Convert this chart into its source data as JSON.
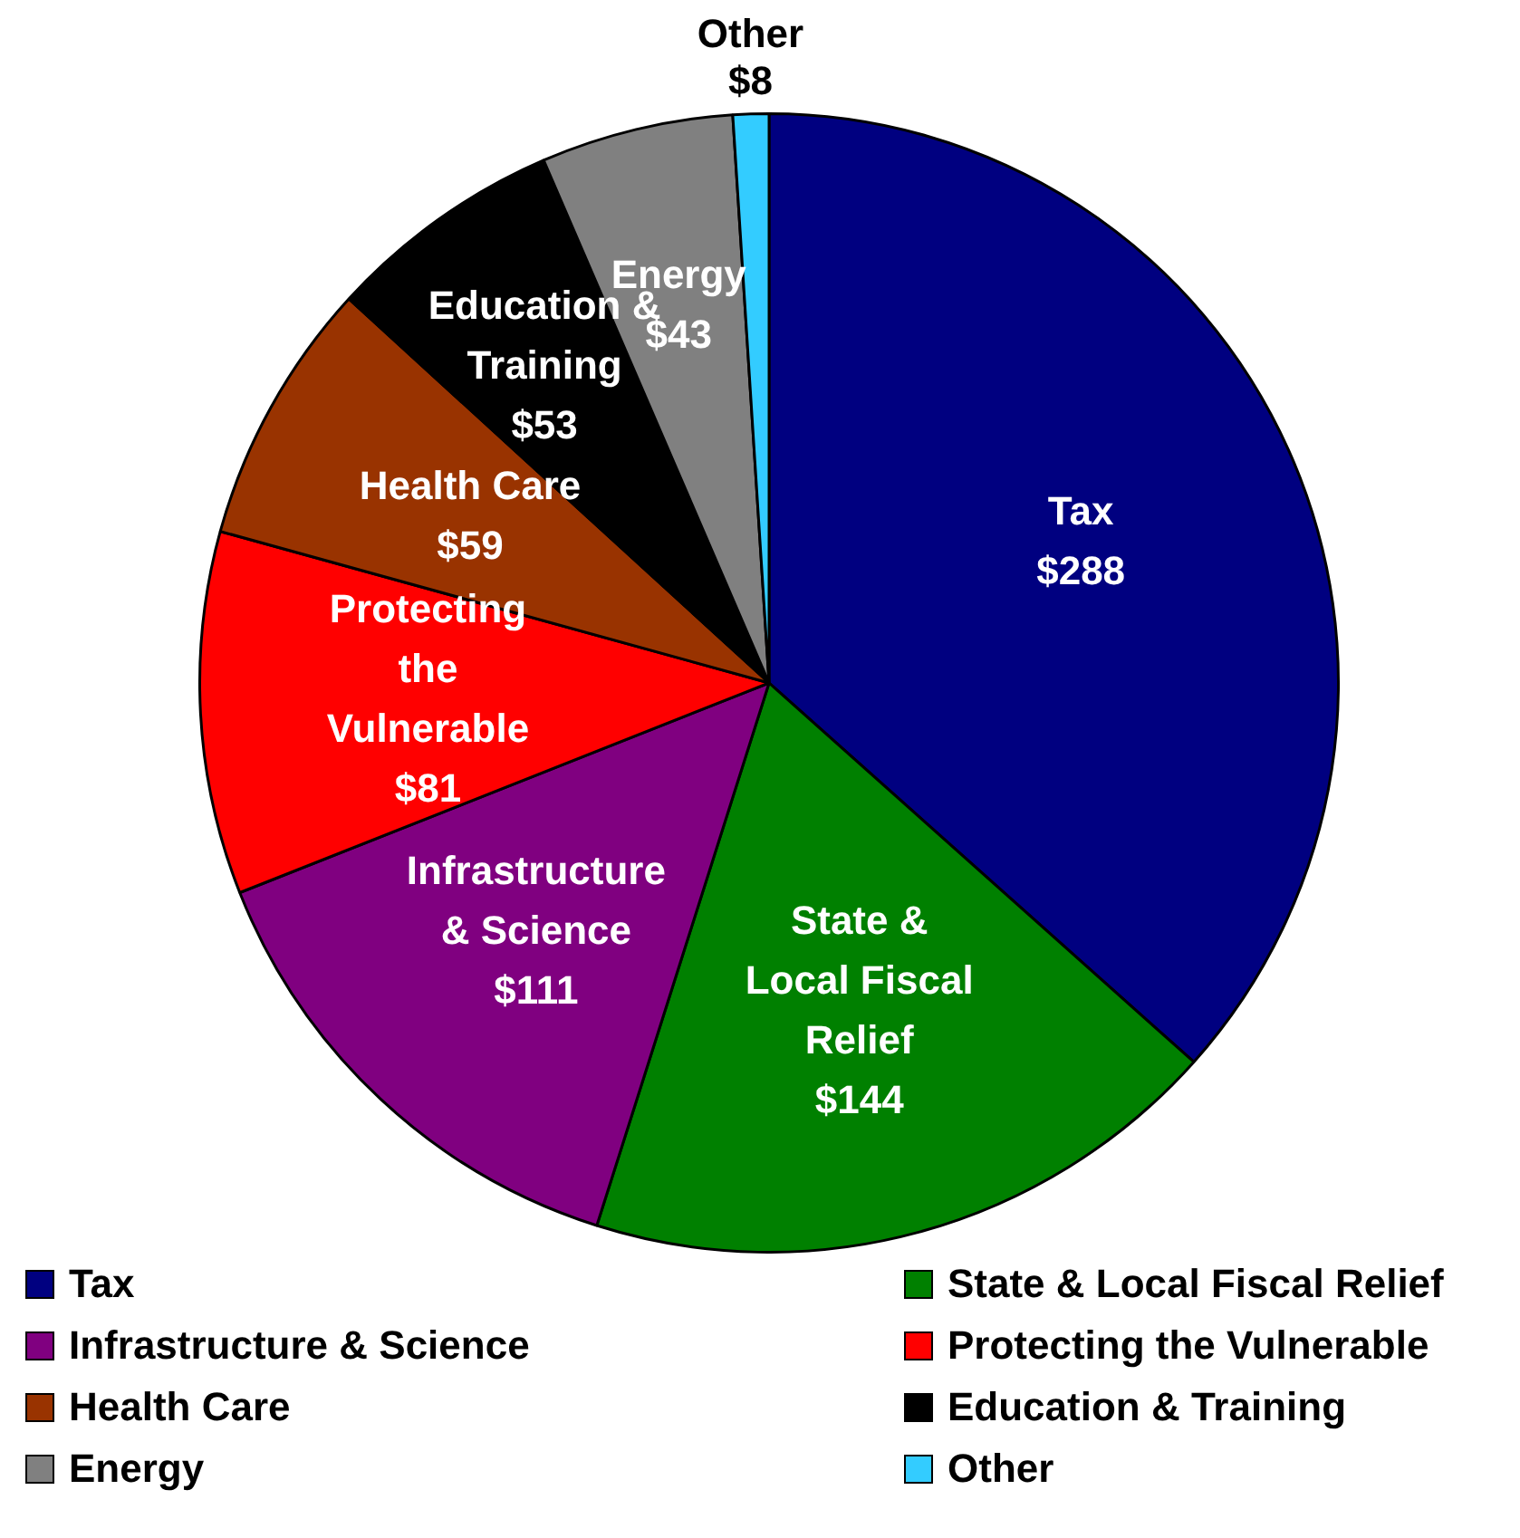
{
  "chart_data": {
    "type": "pie",
    "categories": [
      "Tax",
      "State & Local Fiscal Relief",
      "Infrastructure & Science",
      "Protecting the Vulnerable",
      "Health Care",
      "Education & Training",
      "Energy",
      "Other"
    ],
    "values": [
      288,
      144,
      111,
      81,
      59,
      53,
      43,
      8
    ],
    "value_labels": [
      "$288",
      "$144",
      "$111",
      "$81",
      "$59",
      "$53",
      "$43",
      "$8"
    ],
    "colors": [
      "#000080",
      "#008000",
      "#800080",
      "#ff0000",
      "#993300",
      "#000000",
      "#808080",
      "#33ccff"
    ],
    "legend": "bottom"
  }
}
